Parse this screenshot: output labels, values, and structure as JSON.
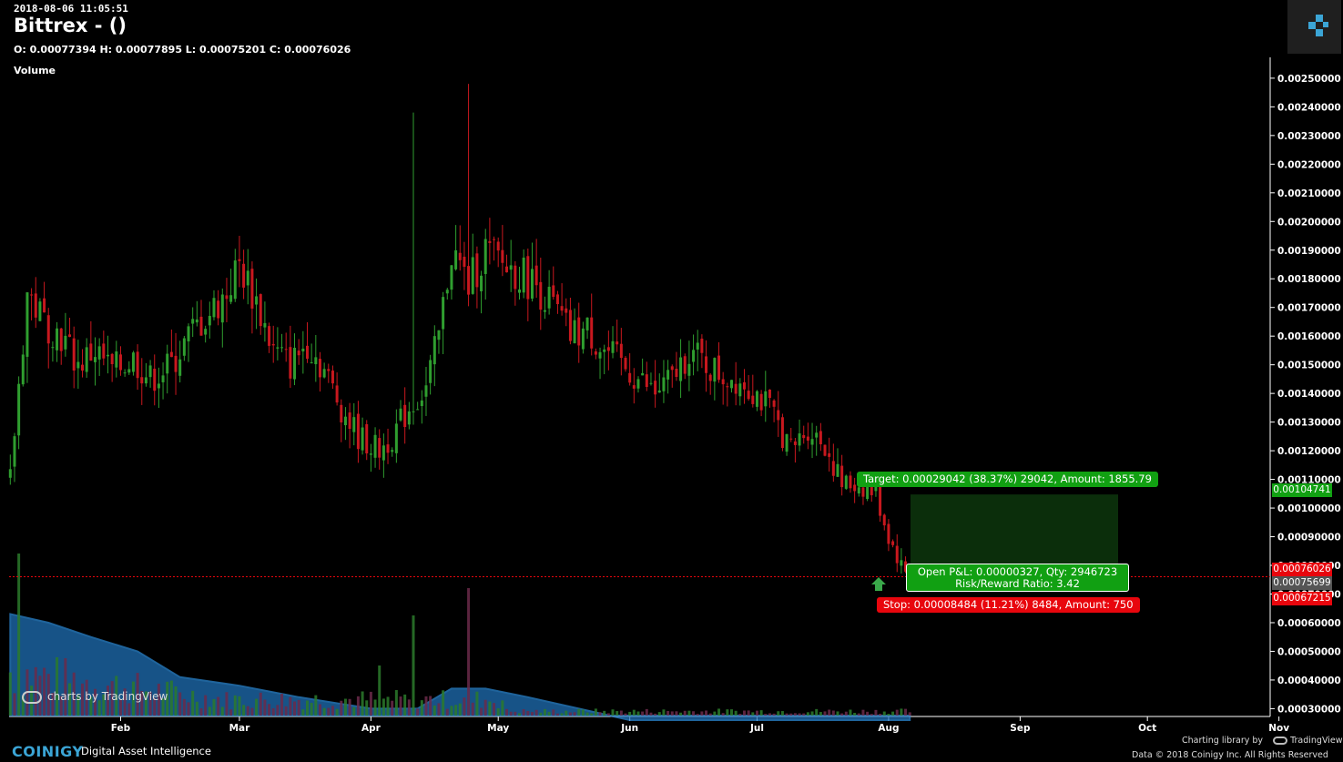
{
  "header": {
    "timestamp": "2018-08-06 11:05:51",
    "title": "Bittrex -  ()",
    "ohlc": "O: 0.00077394 H: 0.00077895 L: 0.00075201 C: 0.00076026",
    "volume_label": "Volume"
  },
  "trade": {
    "target_label": "Target: 0.00029042 (38.37%) 29042, Amount: 1855.79",
    "stop_label": "Stop: 0.00008484 (11.21%) 8484, Amount: 750",
    "pnl_line1": "Open P&L: 0.00000327, Qty: 2946723",
    "pnl_line2": "Risk/Reward Ratio: 3.42",
    "target_price": "0.00104741",
    "close_price": "0.00076026",
    "entry_price": "0.00075699",
    "stop_price": "0.00067215"
  },
  "watermark": "charts by TradingView",
  "footer": {
    "brand": "COINIGY",
    "tagline": "Digital Asset Intelligence",
    "charting_by": "Charting library by",
    "tradingview": "TradingView",
    "copyright": "Data © 2018   Coinigy Inc. All Rights Reserved"
  },
  "colors": {
    "up": "#2f9e2f",
    "down": "#c8181e",
    "volume_area": "#1f6fb5",
    "target_zone": "#0b2e0b",
    "close_line": "#e8060d",
    "brand": "#3ba5d6"
  },
  "chart_data": {
    "type": "candlestick",
    "x_ticks": [
      "Feb",
      "Mar",
      "Apr",
      "May",
      "Jun",
      "Jul",
      "Aug",
      "Sep",
      "Oct",
      "Nov"
    ],
    "y_ticks": [
      "0.00250000",
      "0.00240000",
      "0.00230000",
      "0.00220000",
      "0.00210000",
      "0.00200000",
      "0.00190000",
      "0.00180000",
      "0.00170000",
      "0.00160000",
      "0.00150000",
      "0.00140000",
      "0.00130000",
      "0.00120000",
      "0.00110000",
      "0.00100000",
      "0.00090000",
      "0.00080000",
      "0.00070000",
      "0.00060000",
      "0.00050000",
      "0.00040000",
      "0.00030000"
    ],
    "ylim": [
      0.00026,
      0.00256
    ],
    "price_path": [
      [
        "2018-01-06",
        0.0011
      ],
      [
        "2018-01-10",
        0.00175
      ],
      [
        "2018-01-14",
        0.00165
      ],
      [
        "2018-01-18",
        0.0016
      ],
      [
        "2018-01-22",
        0.0015
      ],
      [
        "2018-01-26",
        0.00155
      ],
      [
        "2018-01-30",
        0.00148
      ],
      [
        "2018-02-04",
        0.00152
      ],
      [
        "2018-02-08",
        0.00145
      ],
      [
        "2018-02-13",
        0.0015
      ],
      [
        "2018-02-18",
        0.00162
      ],
      [
        "2018-02-22",
        0.00168
      ],
      [
        "2018-02-26",
        0.00175
      ],
      [
        "2018-03-01",
        0.00185
      ],
      [
        "2018-03-05",
        0.00172
      ],
      [
        "2018-03-09",
        0.00155
      ],
      [
        "2018-03-13",
        0.0015
      ],
      [
        "2018-03-17",
        0.00158
      ],
      [
        "2018-03-21",
        0.00148
      ],
      [
        "2018-03-25",
        0.00135
      ],
      [
        "2018-03-29",
        0.00125
      ],
      [
        "2018-04-03",
        0.0012
      ],
      [
        "2018-04-06",
        0.00125
      ],
      [
        "2018-04-10",
        0.00135
      ],
      [
        "2018-04-14",
        0.00142
      ],
      [
        "2018-04-17",
        0.0016
      ],
      [
        "2018-04-20",
        0.0019
      ],
      [
        "2018-04-24",
        0.00178
      ],
      [
        "2018-04-28",
        0.0019
      ],
      [
        "2018-05-02",
        0.00185
      ],
      [
        "2018-05-06",
        0.00182
      ],
      [
        "2018-05-10",
        0.00178
      ],
      [
        "2018-05-14",
        0.0017
      ],
      [
        "2018-05-18",
        0.0016
      ],
      [
        "2018-05-22",
        0.00162
      ],
      [
        "2018-05-26",
        0.00155
      ],
      [
        "2018-05-30",
        0.0015
      ],
      [
        "2018-06-03",
        0.00145
      ],
      [
        "2018-06-07",
        0.0014
      ],
      [
        "2018-06-11",
        0.00145
      ],
      [
        "2018-06-15",
        0.00155
      ],
      [
        "2018-06-19",
        0.0015
      ],
      [
        "2018-06-23",
        0.00146
      ],
      [
        "2018-06-27",
        0.00145
      ],
      [
        "2018-07-01",
        0.0014
      ],
      [
        "2018-07-05",
        0.00132
      ],
      [
        "2018-07-09",
        0.0012
      ],
      [
        "2018-07-13",
        0.00128
      ],
      [
        "2018-07-17",
        0.00122
      ],
      [
        "2018-07-21",
        0.00108
      ],
      [
        "2018-07-25",
        0.00108
      ],
      [
        "2018-07-29",
        0.00105
      ],
      [
        "2018-08-01",
        0.0009
      ],
      [
        "2018-08-04",
        0.0008
      ],
      [
        "2018-08-06",
        0.00076
      ]
    ],
    "close_price": 0.00076026,
    "entry_price": 0.00075699,
    "target_price": 0.00104741,
    "stop_price": 0.00067215,
    "volume_scale": [
      0.00026,
      0.00256
    ],
    "volume_path": [
      [
        "2018-01-06",
        0.00063
      ],
      [
        "2018-01-15",
        0.0006
      ],
      [
        "2018-01-25",
        0.00055
      ],
      [
        "2018-02-05",
        0.0005
      ],
      [
        "2018-02-15",
        0.00041
      ],
      [
        "2018-03-01",
        0.00038
      ],
      [
        "2018-03-15",
        0.00034
      ],
      [
        "2018-04-01",
        0.0003
      ],
      [
        "2018-04-12",
        0.0003
      ],
      [
        "2018-04-20",
        0.00037
      ],
      [
        "2018-04-28",
        0.00037
      ],
      [
        "2018-05-08",
        0.00034
      ],
      [
        "2018-05-20",
        0.0003
      ],
      [
        "2018-06-01",
        0.00026
      ],
      [
        "2018-07-01",
        0.00026
      ],
      [
        "2018-08-06",
        0.00026
      ]
    ]
  }
}
